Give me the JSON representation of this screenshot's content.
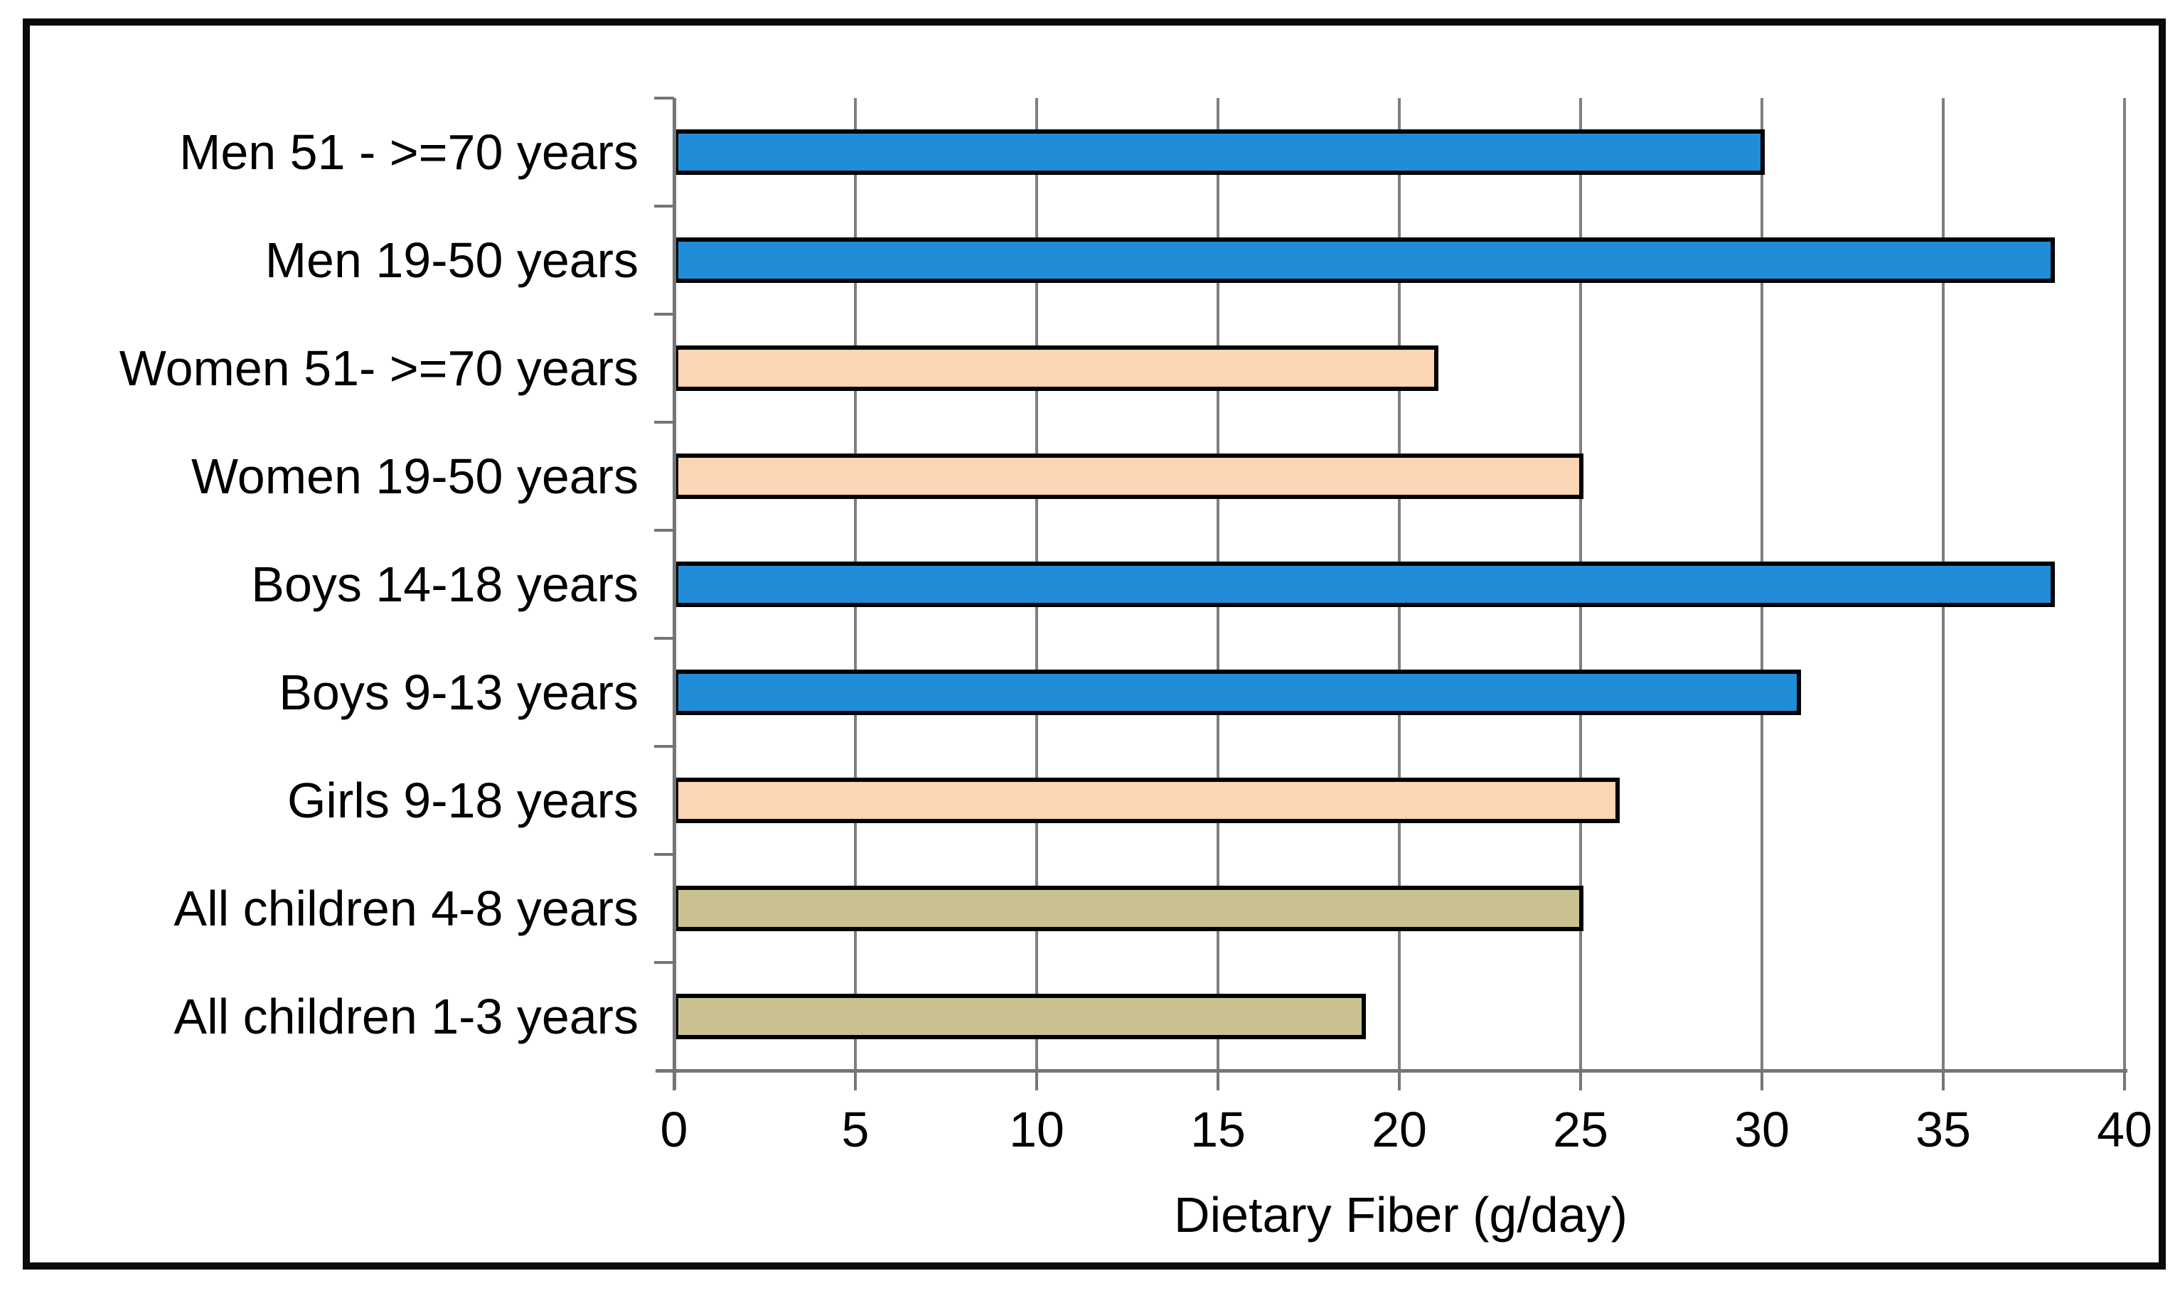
{
  "chart_data": {
    "type": "bar",
    "orientation": "horizontal",
    "title": "",
    "xlabel": "Dietary Fiber (g/day)",
    "ylabel": "",
    "categories": [
      "Men 51 - >=70 years",
      "Men 19-50 years",
      "Women 51- >=70 years",
      "Women 19-50 years",
      "Boys 14-18 years",
      "Boys 9-13 years",
      "Girls 9-18 years",
      "All children 4-8 years",
      "All children 1-3 years"
    ],
    "values": [
      30,
      38,
      21,
      25,
      38,
      31,
      26,
      25,
      19
    ],
    "bar_colors": [
      "#218CD8",
      "#218CD8",
      "#FCD5B4",
      "#FCD5B4",
      "#218CD8",
      "#218CD8",
      "#FCD5B4",
      "#C9C190",
      "#C9C190"
    ],
    "color_legend": {
      "male_groups": "#218CD8",
      "female_groups": "#FCD5B4",
      "all_children_groups": "#C9C190"
    },
    "xlim": [
      0,
      40
    ],
    "xticks": [
      0,
      5,
      10,
      15,
      20,
      25,
      30,
      35,
      40
    ],
    "grid": "vertical gridlines every 5, gray",
    "legend_position": "none",
    "styles": {
      "bar_border": "#000000",
      "axis_line": "#757575",
      "gridline": "#7F7F7F",
      "text": "#000000",
      "background": "#FFFFFF",
      "frame_border": "#000000"
    }
  }
}
